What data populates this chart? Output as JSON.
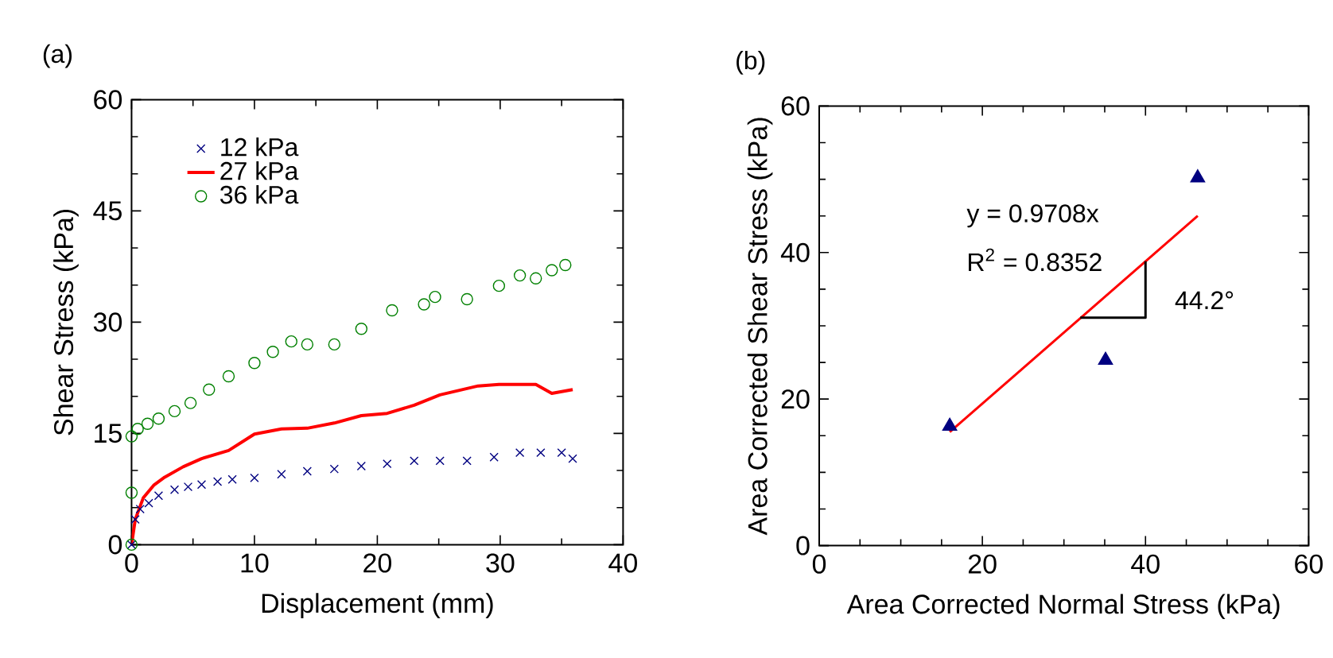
{
  "chart_data": [
    {
      "type": "scatter",
      "title": "(a)",
      "xlabel": "Displacement (mm)",
      "ylabel": "Shear Stress (kPa)",
      "xlim": [
        0,
        40
      ],
      "ylim": [
        0,
        60
      ],
      "xticks": [
        0,
        10,
        20,
        30,
        40
      ],
      "yticks": [
        0,
        15,
        30,
        45,
        60
      ],
      "legend": "top left",
      "series": [
        {
          "name": "12 kPa",
          "color": "#000080",
          "marker": "cross",
          "x": [
            0,
            0.3,
            0.7,
            1.4,
            2.2,
            3.5,
            4.6,
            5.7,
            7.0,
            8.2,
            10,
            12.2,
            14.3,
            16.5,
            18.7,
            20.8,
            23,
            25.1,
            27.3,
            29.5,
            31.6,
            33.3,
            35,
            35.9
          ],
          "values": [
            0,
            3.4,
            4.8,
            5.6,
            6.6,
            7.4,
            7.8,
            8.1,
            8.5,
            8.8,
            9,
            9.5,
            9.9,
            10.2,
            10.6,
            10.9,
            11.3,
            11.3,
            11.3,
            11.8,
            12.4,
            12.4,
            12.4,
            11.6
          ]
        },
        {
          "name": "27 kPa",
          "color": "#ff0000",
          "type": "line",
          "x": [
            0,
            0.3,
            0.95,
            1.8,
            2.7,
            4.2,
            5.7,
            7.9,
            10,
            12.2,
            14.3,
            16.5,
            18.7,
            20.8,
            23,
            25.1,
            28.2,
            29.9,
            32.9,
            34.2,
            35.9
          ],
          "values": [
            0,
            3.4,
            6.3,
            8.0,
            9.1,
            10.5,
            11.6,
            12.7,
            14.9,
            15.6,
            15.7,
            16.4,
            17.4,
            17.7,
            18.8,
            20.2,
            21.4,
            21.6,
            21.6,
            20.4,
            20.9
          ]
        },
        {
          "name": "36 kPa",
          "color": "#008000",
          "marker": "circle",
          "x": [
            0,
            0,
            0,
            0.5,
            1.3,
            2.2,
            3.5,
            4.8,
            6.3,
            7.9,
            10,
            11.5,
            13,
            14.3,
            16.5,
            18.7,
            21.2,
            23.8,
            24.7,
            27.3,
            29.9,
            31.6,
            32.9,
            34.2,
            35.3
          ],
          "values": [
            0,
            7,
            14.6,
            15.6,
            16.3,
            17,
            18,
            19.1,
            20.9,
            22.7,
            24.5,
            26,
            27.4,
            27,
            27,
            29.1,
            31.6,
            32.4,
            33.4,
            33.1,
            34.9,
            36.3,
            35.9,
            37,
            37.7
          ]
        }
      ]
    },
    {
      "type": "scatter",
      "title": "(b)",
      "xlabel": "Area Corrected Normal Stress (kPa)",
      "ylabel": "Area Corrected Shear Stress (kPa)",
      "xlim": [
        0,
        60
      ],
      "ylim": [
        0,
        60
      ],
      "xticks": [
        0,
        20,
        40,
        60
      ],
      "yticks": [
        0,
        20,
        40,
        60
      ],
      "annotations": [
        "y = 0.9708x",
        "R$^{2}$ = 0.8352",
        "44.2°"
      ],
      "series": [
        {
          "color": "#000080",
          "marker": "triangle",
          "x": [
            16.0,
            35.1,
            46.4
          ],
          "values": [
            16.3,
            25.3,
            50.2
          ]
        },
        {
          "color": "#ff0000",
          "type": "line",
          "x": [
            16.0,
            46.4
          ],
          "values": [
            15.5,
            45.0
          ]
        },
        {
          "color": "#000000",
          "type": "line",
          "x": [
            32,
            40,
            40
          ],
          "values": [
            31.1,
            31.1,
            38.8
          ]
        }
      ]
    }
  ]
}
